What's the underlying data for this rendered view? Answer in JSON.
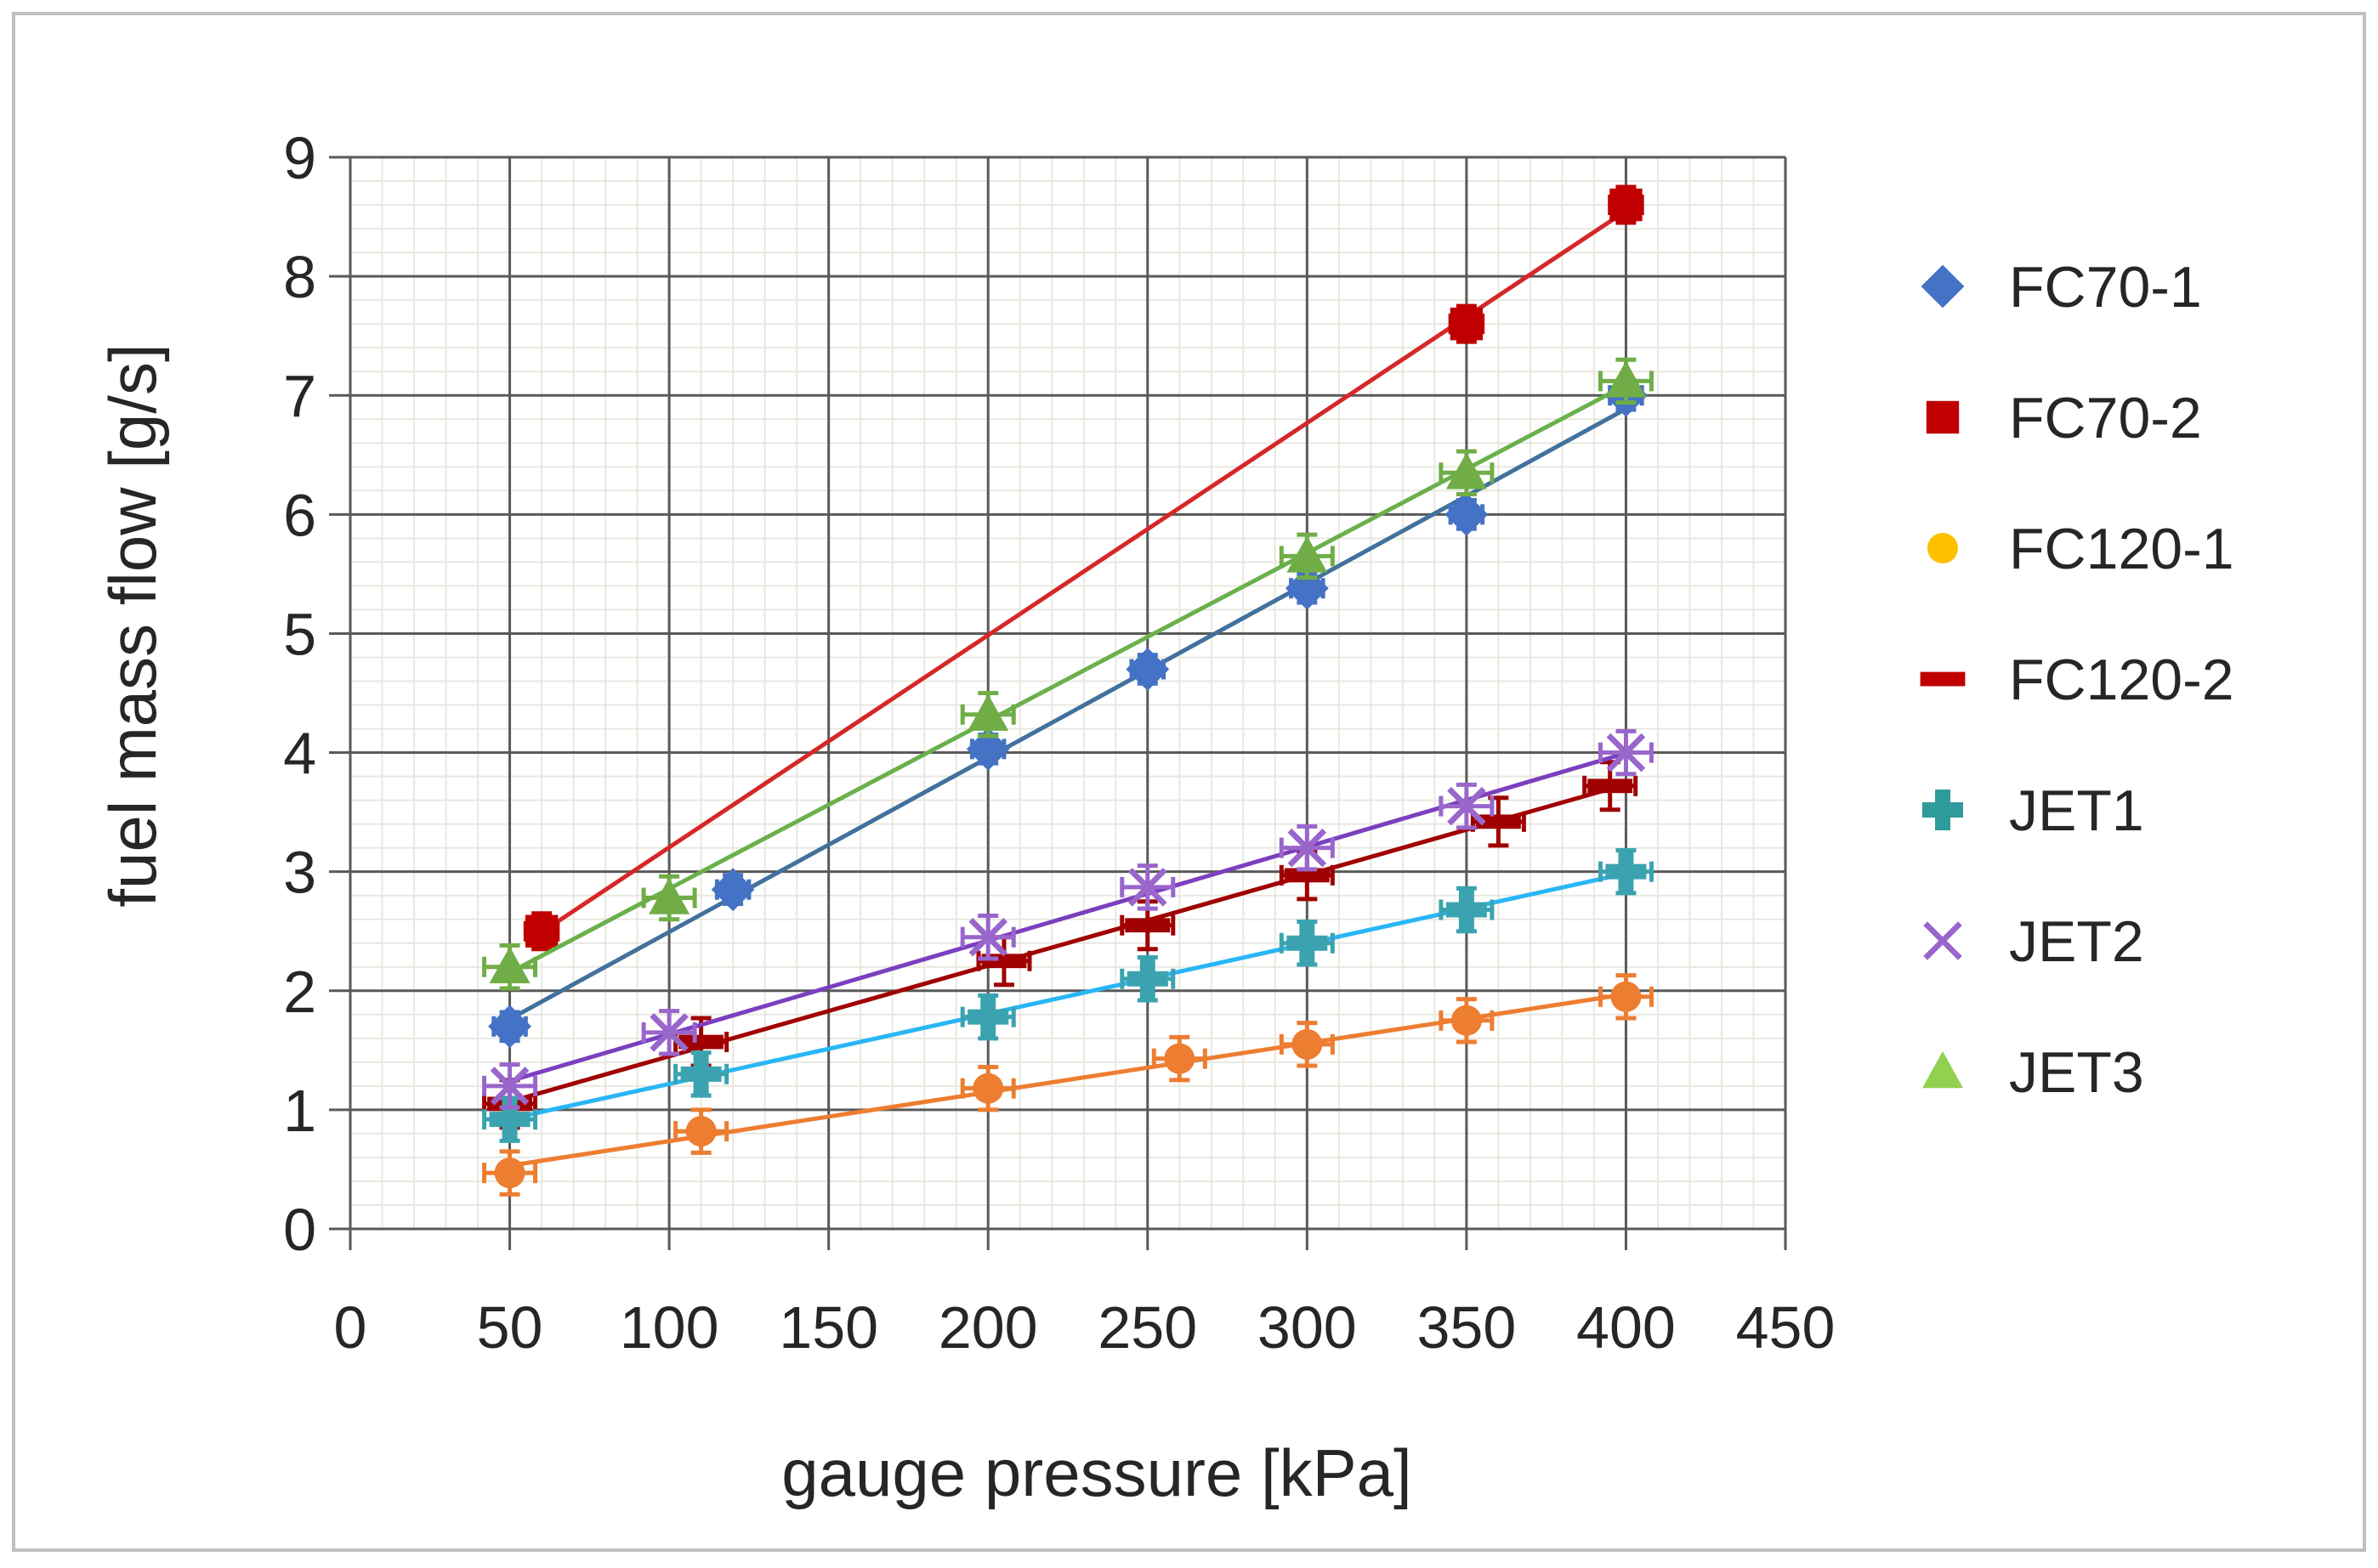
{
  "chart_data": {
    "type": "scatter",
    "title": "",
    "xlabel": "gauge pressure [kPa]",
    "ylabel": "fuel mass flow [g/s]",
    "xlim": [
      0,
      450
    ],
    "ylim": [
      0,
      9
    ],
    "x_ticks": [
      0,
      50,
      100,
      150,
      200,
      250,
      300,
      350,
      400,
      450
    ],
    "y_ticks": [
      0,
      1,
      2,
      3,
      4,
      5,
      6,
      7,
      8,
      9
    ],
    "grid": true,
    "legend_position": "right",
    "series": [
      {
        "name": "FC70-1",
        "color": "#4472C4",
        "line_color": "#41719C",
        "marker": "diamond",
        "trendline": true,
        "x_err": 5,
        "y_err": 0.12,
        "points": [
          [
            50,
            1.7
          ],
          [
            120,
            2.85
          ],
          [
            200,
            4.03
          ],
          [
            250,
            4.7
          ],
          [
            300,
            5.38
          ],
          [
            350,
            6.0
          ],
          [
            400,
            7.0
          ]
        ]
      },
      {
        "name": "FC70-2",
        "color": "#C00000",
        "line_color": "#D62728",
        "marker": "square",
        "trendline": true,
        "x_err": 5,
        "y_err": 0.15,
        "points": [
          [
            60,
            2.5
          ],
          [
            350,
            7.6
          ],
          [
            400,
            8.6
          ]
        ]
      },
      {
        "name": "FC120-1",
        "color": "#ED7D31",
        "legend_color": "#FFC000",
        "line_color": "#ED7D31",
        "marker": "circle",
        "trendline": true,
        "x_err": 8,
        "y_err": 0.18,
        "points": [
          [
            50,
            0.47
          ],
          [
            110,
            0.82
          ],
          [
            200,
            1.18
          ],
          [
            260,
            1.43
          ],
          [
            300,
            1.55
          ],
          [
            350,
            1.75
          ],
          [
            400,
            1.95
          ]
        ]
      },
      {
        "name": "FC120-2",
        "color": "#A00000",
        "legend_color": "#C00000",
        "line_color": "#A00000",
        "marker": "dash",
        "trendline": true,
        "x_err": 8,
        "y_err": 0.2,
        "points": [
          [
            50,
            1.05
          ],
          [
            110,
            1.57
          ],
          [
            205,
            2.25
          ],
          [
            250,
            2.55
          ],
          [
            300,
            2.97
          ],
          [
            360,
            3.42
          ],
          [
            395,
            3.72
          ]
        ]
      },
      {
        "name": "JET1",
        "color": "#3BA3B0",
        "legend_color": "#2E9A9A",
        "line_color": "#29B6F6",
        "marker": "plus",
        "trendline": true,
        "x_err": 8,
        "y_err": 0.18,
        "points": [
          [
            50,
            0.92
          ],
          [
            110,
            1.3
          ],
          [
            200,
            1.78
          ],
          [
            250,
            2.1
          ],
          [
            300,
            2.4
          ],
          [
            350,
            2.68
          ],
          [
            400,
            3.0
          ]
        ]
      },
      {
        "name": "JET2",
        "color": "#9966CC",
        "line_color": "#7B3FBF",
        "marker": "x",
        "trendline": true,
        "x_err": 8,
        "y_err": 0.18,
        "points": [
          [
            50,
            1.2
          ],
          [
            100,
            1.65
          ],
          [
            200,
            2.45
          ],
          [
            250,
            2.87
          ],
          [
            300,
            3.2
          ],
          [
            350,
            3.55
          ],
          [
            400,
            4.0
          ]
        ]
      },
      {
        "name": "JET3",
        "color": "#70AD47",
        "legend_color": "#92D050",
        "line_color": "#6AB04C",
        "marker": "triangle",
        "trendline": true,
        "x_err": 8,
        "y_err": 0.18,
        "points": [
          [
            50,
            2.2
          ],
          [
            100,
            2.78
          ],
          [
            200,
            4.32
          ],
          [
            300,
            5.65
          ],
          [
            350,
            6.35
          ],
          [
            400,
            7.12
          ]
        ]
      }
    ]
  }
}
